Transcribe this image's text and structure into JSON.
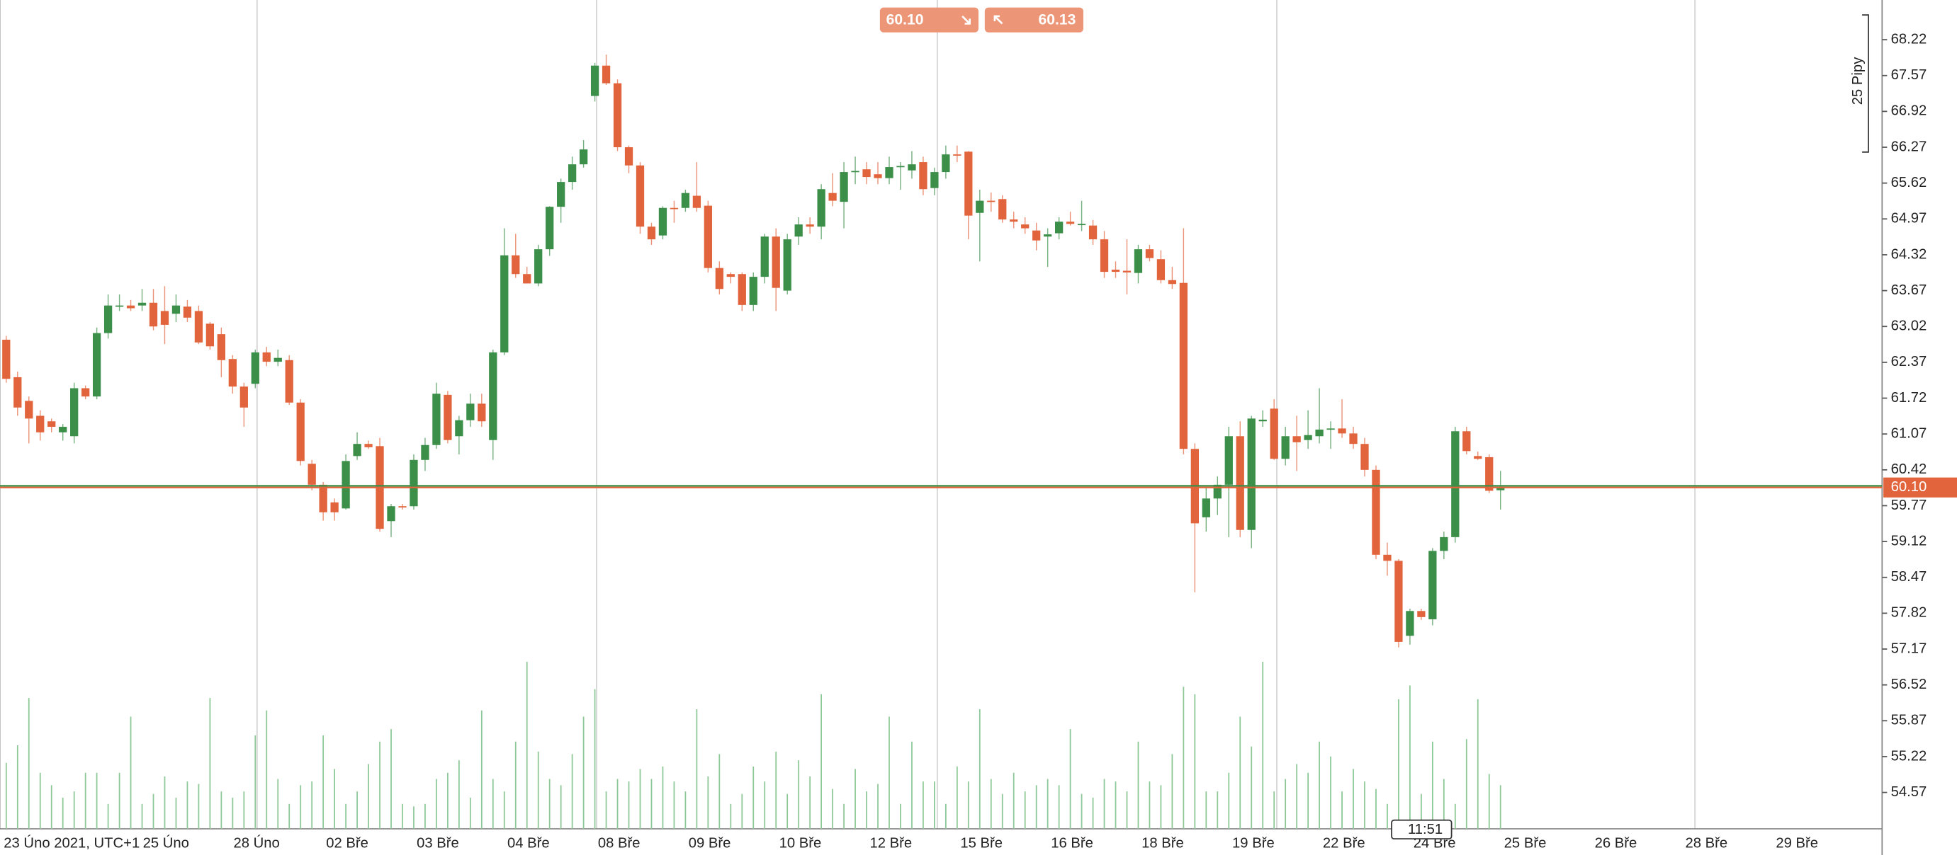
{
  "chart_data": {
    "type": "candlestick",
    "up_color": "#3b8f48",
    "down_color": "#e2643c",
    "volume_color": "#8cc896",
    "ylim": [
      53.91,
      68.94
    ],
    "yticks": [
      68.22,
      67.57,
      66.92,
      66.27,
      65.62,
      64.97,
      64.32,
      63.67,
      63.02,
      62.37,
      61.72,
      61.07,
      60.42,
      59.77,
      59.12,
      58.47,
      57.82,
      57.17,
      56.52,
      55.87,
      55.22,
      54.57
    ],
    "vlim": [
      0,
      135
    ],
    "x_labels": [
      "23 Úno 2021, UTC+1",
      "25 Úno",
      "28 Úno",
      "02 Bře",
      "03 Bře",
      "04 Bře",
      "08 Bře",
      "09 Bře",
      "10 Bře",
      "12 Bře",
      "15 Bře",
      "16 Bře",
      "18 Bře",
      "19 Bře",
      "22 Bře",
      "24 Bře",
      "25 Bře",
      "26 Bře",
      "28 Bře",
      "29 Bře"
    ],
    "bid": {
      "value": 60.1,
      "label": "60.10"
    },
    "ask": 60.13,
    "pip_label": "25 Pipy",
    "time_label": "11:51",
    "ohlc": [
      [
        62.78,
        62.85,
        62.0,
        62.07
      ],
      [
        62.1,
        62.2,
        61.4,
        61.55
      ],
      [
        61.67,
        61.75,
        60.9,
        61.35
      ],
      [
        61.4,
        61.5,
        60.95,
        61.1
      ],
      [
        61.3,
        61.35,
        61.1,
        61.2
      ],
      [
        61.1,
        61.25,
        60.95,
        61.2
      ],
      [
        61.03,
        62.0,
        60.9,
        61.9
      ],
      [
        61.9,
        61.95,
        61.7,
        61.75
      ],
      [
        61.75,
        63.0,
        61.7,
        62.9
      ],
      [
        62.9,
        63.6,
        62.8,
        63.4
      ],
      [
        63.38,
        63.6,
        63.3,
        63.4
      ],
      [
        63.4,
        63.5,
        63.3,
        63.35
      ],
      [
        63.4,
        63.7,
        63.3,
        63.45
      ],
      [
        63.45,
        63.7,
        62.95,
        63.02
      ],
      [
        63.3,
        63.75,
        62.7,
        63.05
      ],
      [
        63.25,
        63.6,
        63.1,
        63.4
      ],
      [
        63.38,
        63.5,
        63.1,
        63.18
      ],
      [
        63.3,
        63.4,
        62.7,
        62.73
      ],
      [
        63.07,
        63.1,
        62.6,
        62.66
      ],
      [
        62.88,
        63.0,
        62.1,
        62.41
      ],
      [
        62.43,
        62.5,
        61.8,
        61.93
      ],
      [
        61.93,
        62.0,
        61.2,
        61.55
      ],
      [
        61.98,
        62.6,
        61.9,
        62.55
      ],
      [
        62.55,
        62.65,
        62.3,
        62.38
      ],
      [
        62.38,
        62.6,
        62.3,
        62.45
      ],
      [
        62.41,
        62.5,
        61.6,
        61.64
      ],
      [
        61.64,
        61.7,
        60.5,
        60.58
      ],
      [
        60.53,
        60.6,
        60.05,
        60.15
      ],
      [
        60.15,
        60.2,
        59.5,
        59.65
      ],
      [
        59.83,
        59.9,
        59.5,
        59.65
      ],
      [
        59.72,
        60.7,
        59.7,
        60.58
      ],
      [
        60.67,
        61.1,
        60.6,
        60.89
      ],
      [
        60.89,
        60.95,
        60.8,
        60.83
      ],
      [
        60.85,
        61.0,
        59.3,
        59.35
      ],
      [
        59.49,
        59.8,
        59.2,
        59.76
      ],
      [
        59.76,
        59.8,
        59.7,
        59.74
      ],
      [
        59.76,
        60.7,
        59.7,
        60.6
      ],
      [
        60.6,
        61.0,
        60.4,
        60.87
      ],
      [
        60.87,
        62.0,
        60.8,
        61.8
      ],
      [
        61.78,
        61.85,
        60.9,
        60.96
      ],
      [
        61.03,
        61.4,
        60.7,
        61.32
      ],
      [
        61.32,
        61.8,
        61.2,
        61.62
      ],
      [
        61.62,
        61.8,
        61.2,
        61.3
      ],
      [
        60.96,
        62.6,
        60.6,
        62.55
      ],
      [
        62.55,
        64.8,
        62.5,
        64.31
      ],
      [
        64.31,
        64.7,
        63.9,
        63.97
      ],
      [
        63.97,
        64.1,
        63.8,
        63.8
      ],
      [
        63.8,
        64.5,
        63.75,
        64.42
      ],
      [
        64.42,
        65.2,
        64.3,
        65.19
      ],
      [
        65.19,
        65.7,
        64.9,
        65.64
      ],
      [
        65.64,
        66.1,
        65.5,
        65.96
      ],
      [
        65.96,
        66.4,
        65.9,
        66.23
      ],
      [
        67.2,
        67.8,
        67.1,
        67.75
      ],
      [
        67.75,
        67.95,
        67.4,
        67.43
      ],
      [
        67.43,
        67.5,
        66.2,
        66.27
      ],
      [
        66.27,
        66.3,
        65.8,
        65.94
      ],
      [
        65.94,
        66.0,
        64.7,
        64.83
      ],
      [
        64.83,
        64.9,
        64.5,
        64.6
      ],
      [
        64.67,
        65.2,
        64.6,
        65.17
      ],
      [
        65.17,
        65.3,
        64.9,
        65.15
      ],
      [
        65.17,
        65.5,
        65.1,
        65.44
      ],
      [
        65.39,
        66.0,
        65.1,
        65.17
      ],
      [
        65.21,
        65.3,
        64.0,
        64.08
      ],
      [
        64.08,
        64.2,
        63.6,
        63.7
      ],
      [
        63.97,
        64.0,
        63.8,
        63.92
      ],
      [
        63.97,
        64.0,
        63.3,
        63.41
      ],
      [
        63.41,
        64.0,
        63.3,
        63.92
      ],
      [
        63.92,
        64.7,
        63.8,
        64.65
      ],
      [
        64.65,
        64.8,
        63.3,
        63.72
      ],
      [
        63.67,
        64.7,
        63.6,
        64.6
      ],
      [
        64.65,
        65.0,
        64.5,
        64.87
      ],
      [
        64.87,
        65.0,
        64.7,
        64.83
      ],
      [
        64.83,
        65.6,
        64.6,
        65.51
      ],
      [
        65.44,
        65.8,
        65.2,
        65.3
      ],
      [
        65.28,
        66.0,
        64.8,
        65.82
      ],
      [
        65.82,
        66.1,
        65.6,
        65.84
      ],
      [
        65.87,
        66.0,
        65.6,
        65.73
      ],
      [
        65.78,
        66.0,
        65.6,
        65.71
      ],
      [
        65.71,
        66.1,
        65.6,
        65.91
      ],
      [
        65.91,
        66.0,
        65.5,
        65.93
      ],
      [
        65.85,
        66.2,
        65.7,
        65.96
      ],
      [
        66.0,
        66.1,
        65.4,
        65.51
      ],
      [
        65.53,
        65.9,
        65.4,
        65.82
      ],
      [
        65.82,
        66.3,
        65.7,
        66.14
      ],
      [
        66.14,
        66.3,
        66.0,
        66.12
      ],
      [
        66.19,
        66.2,
        64.6,
        65.03
      ],
      [
        65.08,
        65.5,
        64.2,
        65.3
      ],
      [
        65.3,
        65.45,
        65.1,
        65.28
      ],
      [
        65.33,
        65.4,
        64.9,
        64.96
      ],
      [
        64.96,
        65.1,
        64.8,
        64.92
      ],
      [
        64.87,
        65.0,
        64.7,
        64.8
      ],
      [
        64.76,
        64.9,
        64.4,
        64.58
      ],
      [
        64.65,
        64.8,
        64.1,
        64.69
      ],
      [
        64.71,
        65.0,
        64.6,
        64.92
      ],
      [
        64.92,
        65.1,
        64.85,
        64.88
      ],
      [
        64.86,
        65.3,
        64.75,
        64.88
      ],
      [
        64.85,
        64.95,
        64.5,
        64.6
      ],
      [
        64.6,
        64.75,
        63.9,
        64.01
      ],
      [
        64.05,
        64.2,
        63.9,
        64.01
      ],
      [
        64.03,
        64.6,
        63.6,
        64.0
      ],
      [
        63.99,
        64.5,
        63.8,
        64.42
      ],
      [
        64.42,
        64.5,
        64.2,
        64.26
      ],
      [
        64.24,
        64.4,
        63.8,
        63.86
      ],
      [
        63.86,
        64.1,
        63.7,
        63.79
      ],
      [
        63.81,
        64.8,
        60.7,
        60.8
      ],
      [
        60.8,
        60.9,
        58.2,
        59.45
      ],
      [
        59.56,
        60.1,
        59.3,
        59.9
      ],
      [
        59.9,
        60.3,
        59.6,
        60.15
      ],
      [
        60.15,
        61.2,
        59.2,
        61.03
      ],
      [
        61.03,
        61.3,
        59.2,
        59.33
      ],
      [
        59.33,
        61.4,
        59.0,
        61.35
      ],
      [
        61.3,
        61.5,
        61.2,
        61.33
      ],
      [
        61.53,
        61.7,
        60.6,
        60.62
      ],
      [
        60.62,
        61.2,
        60.5,
        61.03
      ],
      [
        61.03,
        61.4,
        60.4,
        60.92
      ],
      [
        60.96,
        61.5,
        60.8,
        61.05
      ],
      [
        61.03,
        61.9,
        60.9,
        61.15
      ],
      [
        61.15,
        61.3,
        60.8,
        61.17
      ],
      [
        61.17,
        61.7,
        61.0,
        61.08
      ],
      [
        61.08,
        61.2,
        60.8,
        60.89
      ],
      [
        60.89,
        61.0,
        60.3,
        60.42
      ],
      [
        60.42,
        60.5,
        58.8,
        58.88
      ],
      [
        58.88,
        59.1,
        58.5,
        58.77
      ],
      [
        58.77,
        58.8,
        57.2,
        57.3
      ],
      [
        57.41,
        57.9,
        57.25,
        57.86
      ],
      [
        57.86,
        57.9,
        57.7,
        57.75
      ],
      [
        57.71,
        59.0,
        57.6,
        58.95
      ],
      [
        58.95,
        59.3,
        58.8,
        59.2
      ],
      [
        59.2,
        61.2,
        59.1,
        61.12
      ],
      [
        61.12,
        61.2,
        60.7,
        60.76
      ],
      [
        60.67,
        60.75,
        60.6,
        60.62
      ],
      [
        60.65,
        60.7,
        60.0,
        60.04
      ],
      [
        60.05,
        60.4,
        59.7,
        60.1
      ]
    ],
    "volume": [
      53,
      67,
      105,
      45,
      35,
      25,
      30,
      45,
      45,
      20,
      45,
      90,
      20,
      28,
      42,
      25,
      38,
      36,
      105,
      30,
      25,
      30,
      75,
      95,
      40,
      20,
      35,
      38,
      75,
      48,
      20,
      30,
      52,
      70,
      80,
      20,
      18,
      20,
      40,
      45,
      55,
      25,
      95,
      40,
      30,
      70,
      134,
      62,
      40,
      35,
      60,
      90,
      112,
      30,
      40,
      38,
      48,
      40,
      50,
      38,
      30,
      96,
      42,
      60,
      20,
      28,
      50,
      38,
      62,
      28,
      55,
      42,
      108,
      32,
      20,
      48,
      30,
      36,
      90,
      20,
      70,
      38,
      38,
      20,
      50,
      38,
      96,
      40,
      28,
      45,
      30,
      35,
      40,
      35,
      80,
      28,
      25,
      40,
      38,
      30,
      70,
      38,
      35,
      60,
      114,
      108,
      30,
      30,
      45,
      90,
      66,
      134,
      30,
      40,
      52,
      45,
      70,
      58,
      30,
      48,
      38,
      32,
      20,
      104,
      115,
      28,
      70,
      40,
      20,
      72,
      104,
      44,
      35
    ]
  }
}
